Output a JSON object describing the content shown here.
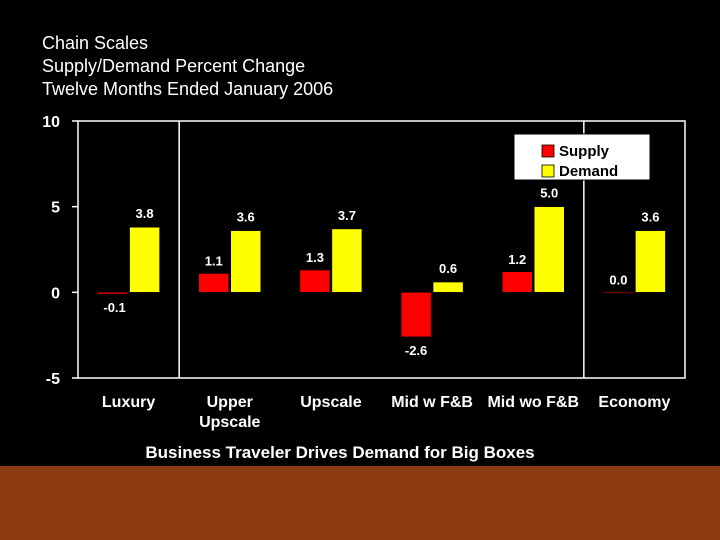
{
  "title_lines": [
    "Chain Scales",
    "Supply/Demand Percent Change",
    "Twelve Months Ended January 2006"
  ],
  "caption": "Business Traveler Drives Demand for Big Boxes",
  "colors": {
    "supply": "#ff0000",
    "demand": "#ffff00",
    "footer": "#8b3a12"
  },
  "chart_data": {
    "type": "bar",
    "categories": [
      "Luxury",
      "Upper Upscale",
      "Upscale",
      "Mid w F&B",
      "Mid wo F&B",
      "Economy"
    ],
    "category_lines": [
      [
        "Luxury"
      ],
      [
        "Upper",
        "Upscale"
      ],
      [
        "Upscale"
      ],
      [
        "Mid w F&B"
      ],
      [
        "Mid wo F&B"
      ],
      [
        "Economy"
      ]
    ],
    "series": [
      {
        "name": "Supply",
        "values": [
          -0.1,
          1.1,
          1.3,
          -2.6,
          1.2,
          0.0
        ]
      },
      {
        "name": "Demand",
        "values": [
          3.8,
          3.6,
          3.7,
          0.6,
          5.0,
          3.6
        ]
      }
    ],
    "data_labels": {
      "Supply": [
        "-0.1",
        "1.1",
        "1.3",
        "-2.6",
        "1.2",
        "0.0"
      ],
      "Demand": [
        "3.8",
        "3.6",
        "3.7",
        "0.6",
        "5.0",
        "3.6"
      ]
    },
    "yticks": [
      "10",
      "5",
      "0",
      "-5"
    ],
    "ylim": [
      -5,
      10
    ],
    "legend_position": "top-right"
  }
}
